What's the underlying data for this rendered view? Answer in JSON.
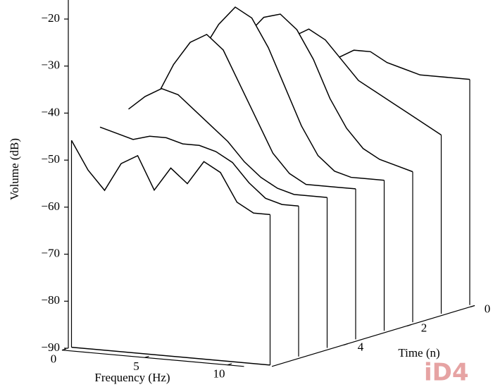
{
  "chart_data": {
    "type": "waterfall",
    "ylabel": "Volume (dB)",
    "xlabel": "Frequency (Hz)",
    "zlabel": "Time (n)",
    "x": [
      0,
      1,
      2,
      3,
      4,
      5,
      6,
      7,
      8,
      9,
      10,
      11,
      12
    ],
    "times": [
      0,
      0.9,
      1.8,
      2.7,
      3.6,
      4.5,
      5.4,
      6.3
    ],
    "color": "#000000",
    "series": [
      {
        "values": [
          -48,
          -46,
          -44,
          -42,
          -40,
          -38,
          -38,
          -40,
          -41,
          -42,
          -42,
          -42,
          -42
        ]
      },
      {
        "values": [
          -46,
          -42,
          -38,
          -34,
          -32,
          -34,
          -38,
          -42,
          -44,
          -46,
          -48,
          -50,
          -52
        ]
      },
      {
        "values": [
          -44,
          -38,
          -32,
          -28,
          -27,
          -30,
          -36,
          -44,
          -50,
          -54,
          -56,
          -57,
          -58
        ]
      },
      {
        "values": [
          -42,
          -34,
          -28,
          -24,
          -26,
          -32,
          -40,
          -48,
          -54,
          -57,
          -58,
          -58,
          -58
        ]
      },
      {
        "values": [
          -42,
          -35,
          -30,
          -28,
          -31,
          -38,
          -45,
          -52,
          -56,
          -58,
          -58,
          -58,
          -58
        ]
      },
      {
        "values": [
          -43,
          -40,
          -38,
          -39,
          -42,
          -45,
          -48,
          -52,
          -55,
          -57,
          -58,
          -58,
          -58
        ]
      },
      {
        "values": [
          -45,
          -46,
          -47,
          -46,
          -46,
          -47,
          -47,
          -48,
          -50,
          -54,
          -57,
          -58,
          -58
        ]
      },
      {
        "values": [
          -46,
          -52,
          -56,
          -50,
          -48,
          -55,
          -50,
          -53,
          -48,
          -50,
          -56,
          -58,
          -58
        ]
      }
    ],
    "ylim": [
      -90,
      -17
    ],
    "yticks": [
      {
        "value": -20,
        "label": "−20"
      },
      {
        "value": -30,
        "label": "−30"
      },
      {
        "value": -40,
        "label": "−40"
      },
      {
        "value": -50,
        "label": "−50"
      },
      {
        "value": -60,
        "label": "−60"
      },
      {
        "value": -70,
        "label": "−70"
      },
      {
        "value": -80,
        "label": "−80"
      },
      {
        "value": -90,
        "label": "−90"
      }
    ],
    "xlim": [
      0,
      12
    ],
    "xticks": [
      0,
      5,
      10
    ],
    "zlim": [
      0,
      6.4
    ],
    "zticks": [
      0,
      2,
      4
    ],
    "watermark": "iD4"
  }
}
